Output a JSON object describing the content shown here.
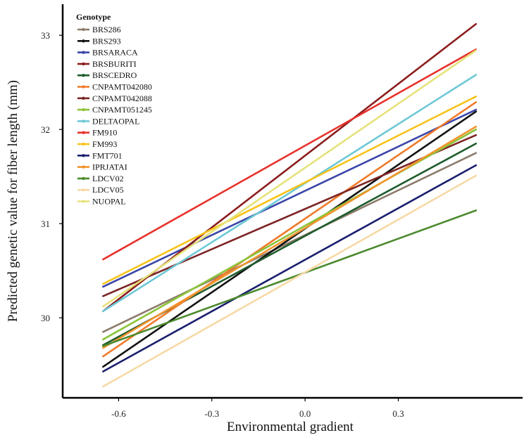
{
  "chart_data": {
    "type": "line",
    "title": "",
    "xlabel": "Environmental gradient",
    "ylabel": "Predicted genetic value for fiber length (mm)",
    "xlim": [
      -0.78,
      0.7
    ],
    "ylim": [
      29.15,
      33.33
    ],
    "x_ticks": [
      -0.6,
      -0.3,
      0.0,
      0.3
    ],
    "x_tick_labels": [
      "-0.6",
      "-0.3",
      "0.0",
      "0.3"
    ],
    "y_ticks": [
      30,
      31,
      32,
      33
    ],
    "y_tick_labels": [
      "30",
      "31",
      "32",
      "33"
    ],
    "grid": false,
    "legend": {
      "title": "Genotype",
      "placement": "top-left"
    },
    "x_range": [
      -0.65,
      0.55
    ],
    "series": [
      {
        "name": "BRS286",
        "color": "#8c7b6b",
        "values": [
          29.85,
          31.75
        ]
      },
      {
        "name": "BRS293",
        "color": "#111111",
        "values": [
          29.48,
          32.19
        ]
      },
      {
        "name": "BRSARACA",
        "color": "#3a46a8",
        "values": [
          30.33,
          32.21
        ]
      },
      {
        "name": "BRSBURITI",
        "color": "#8b1c1c",
        "values": [
          30.07,
          33.12
        ]
      },
      {
        "name": "BRSCEDRO",
        "color": "#1e5c2c",
        "values": [
          29.71,
          31.85
        ]
      },
      {
        "name": "CNPAMT042080",
        "color": "#f07a2a",
        "values": [
          29.59,
          32.29
        ]
      },
      {
        "name": "CNPAMT042088",
        "color": "#7d2424",
        "values": [
          30.23,
          31.94
        ]
      },
      {
        "name": "CNPAMT051245",
        "color": "#8bc43a",
        "values": [
          29.77,
          32.0
        ]
      },
      {
        "name": "DELTAOPAL",
        "color": "#6ec8d6",
        "values": [
          30.07,
          32.58
        ]
      },
      {
        "name": "FM910",
        "color": "#e8322c",
        "values": [
          30.62,
          32.85
        ]
      },
      {
        "name": "FM993",
        "color": "#f7c31a",
        "values": [
          30.36,
          32.35
        ]
      },
      {
        "name": "FMT701",
        "color": "#1a1f6e",
        "values": [
          29.43,
          31.62
        ]
      },
      {
        "name": "IPRJATAI",
        "color": "#f2952e",
        "values": [
          29.68,
          32.03
        ]
      },
      {
        "name": "LDCV02",
        "color": "#4c8a2e",
        "values": [
          29.7,
          31.14
        ]
      },
      {
        "name": "LDCV05",
        "color": "#f7d9a6",
        "values": [
          29.27,
          31.51
        ]
      },
      {
        "name": "NUOPAL",
        "color": "#e6e27a",
        "values": [
          30.12,
          32.84
        ]
      }
    ]
  }
}
